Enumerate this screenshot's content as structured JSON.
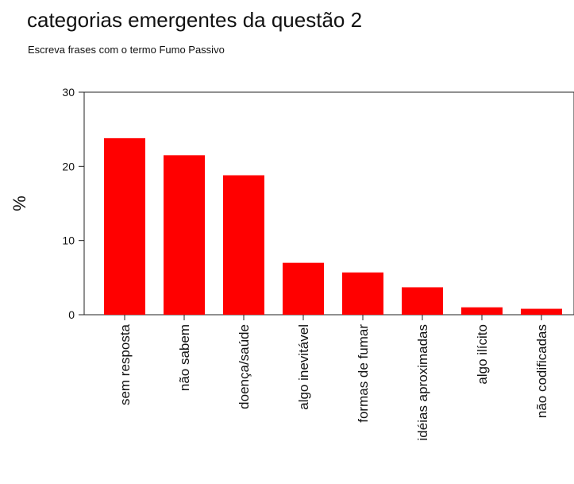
{
  "chart_data": {
    "type": "bar",
    "title": "categorias emergentes da questão 2",
    "subtitle": "Escreva  frases com o termo Fumo Passivo",
    "xlabel": "",
    "ylabel": "%",
    "ylim": [
      0,
      30
    ],
    "yticks": [
      0,
      10,
      20,
      30
    ],
    "grid": false,
    "categories": [
      "sem resposta",
      "não sabem",
      "doença/saúde",
      "algo inevitável",
      "formas de fumar",
      "idéias aproximadas",
      "algo ilícito",
      "não codificadas"
    ],
    "values": [
      23.8,
      21.5,
      18.8,
      7.0,
      5.7,
      3.7,
      1.0,
      0.8
    ],
    "bar_color": "#ff0000"
  }
}
